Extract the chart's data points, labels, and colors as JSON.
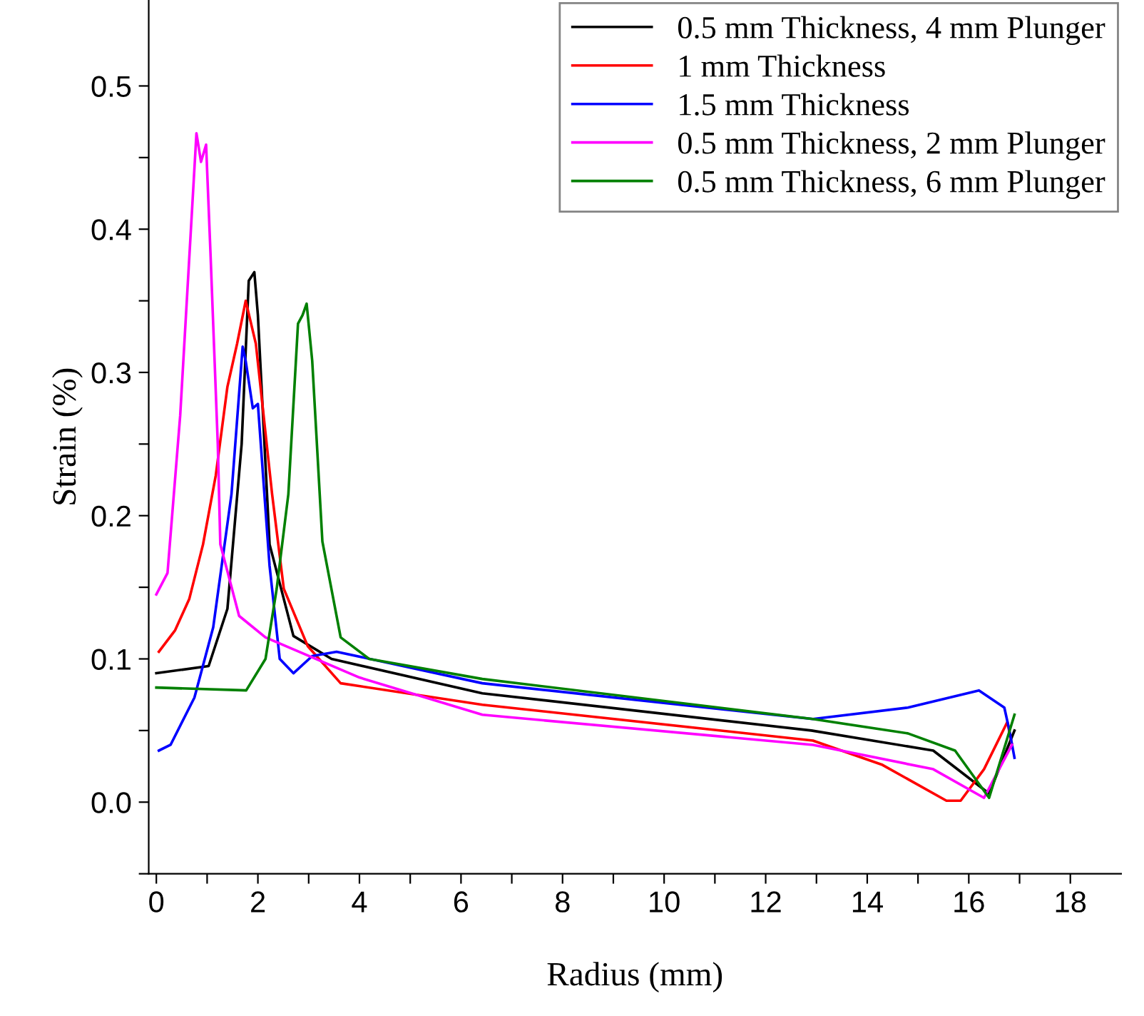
{
  "chart_data": {
    "type": "line",
    "xlabel": "Radius (mm)",
    "ylabel": "Strain (%)",
    "xlim": [
      -0.15,
      19
    ],
    "ylim": [
      -0.05,
      0.56
    ],
    "xticks": [
      0,
      {
        "value": 1,
        "label": null
      },
      2,
      {
        "value": 3,
        "label": null
      },
      4,
      {
        "value": 5,
        "label": null
      },
      6,
      {
        "value": 7,
        "label": null
      },
      8,
      {
        "value": 9,
        "label": null
      },
      10,
      {
        "value": 11,
        "label": null
      },
      12,
      {
        "value": 13,
        "label": null
      },
      14,
      {
        "value": 15,
        "label": null
      },
      16,
      {
        "value": 17,
        "label": null
      },
      18
    ],
    "yticks": [
      {
        "value": -0.05,
        "label": null
      },
      {
        "value": 0,
        "label": "0.0"
      },
      {
        "value": 0.05,
        "label": null
      },
      0.1,
      {
        "value": 0.15,
        "label": null
      },
      0.2,
      {
        "value": 0.25,
        "label": null
      },
      0.3,
      {
        "value": 0.35,
        "label": null
      },
      0.4,
      {
        "value": 0.45,
        "label": null
      },
      0.5
    ],
    "grid": false,
    "legend": "top right",
    "marker": "none",
    "line_style": "solid",
    "series": [
      {
        "name": "0.5 mm Thickness, 4 mm Plunger",
        "color": "#000000",
        "x": [
          0,
          1.03,
          1.4,
          1.68,
          1.82,
          1.93,
          2.0,
          2.23,
          2.7,
          3.45,
          6.42,
          12.9,
          15.3,
          16.4,
          16.9
        ],
        "values": [
          0.09,
          0.095,
          0.135,
          0.25,
          0.364,
          0.37,
          0.34,
          0.18,
          0.116,
          0.1,
          0.076,
          0.05,
          0.036,
          0.006,
          0.05
        ]
      },
      {
        "name": "1 mm Thickness",
        "color": "#ff0000",
        "x": [
          0.05,
          0.37,
          0.65,
          0.92,
          1.17,
          1.4,
          1.59,
          1.76,
          1.96,
          2.28,
          2.51,
          2.98,
          3.63,
          6.42,
          12.93,
          14.3,
          15.56,
          15.84,
          16.3,
          16.76,
          16.85
        ],
        "values": [
          0.105,
          0.12,
          0.142,
          0.18,
          0.228,
          0.29,
          0.32,
          0.35,
          0.32,
          0.215,
          0.149,
          0.109,
          0.083,
          0.068,
          0.043,
          0.026,
          0.001,
          0.001,
          0.023,
          0.056,
          0.04
        ]
      },
      {
        "name": "1.5 mm Thickness",
        "color": "#0000ff",
        "x": [
          0.05,
          0.28,
          0.75,
          1.12,
          1.48,
          1.7,
          1.76,
          1.9,
          2.0,
          2.23,
          2.43,
          2.7,
          3.07,
          3.55,
          6.42,
          12.93,
          14.8,
          16.2,
          16.7,
          16.8,
          16.9
        ],
        "values": [
          0.036,
          0.04,
          0.073,
          0.122,
          0.215,
          0.318,
          0.308,
          0.275,
          0.278,
          0.165,
          0.1,
          0.09,
          0.102,
          0.105,
          0.083,
          0.058,
          0.066,
          0.078,
          0.066,
          0.05,
          0.031
        ]
      },
      {
        "name": "0.5 mm Thickness, 2 mm Plunger",
        "color": "#ff00ff",
        "x": [
          0,
          0.22,
          0.47,
          0.79,
          0.88,
          0.98,
          1.07,
          1.21,
          1.26,
          1.63,
          2.15,
          4.0,
          6.42,
          12.93,
          15.3,
          16.3,
          16.85
        ],
        "values": [
          0.145,
          0.16,
          0.27,
          0.467,
          0.447,
          0.459,
          0.38,
          0.25,
          0.18,
          0.13,
          0.115,
          0.087,
          0.061,
          0.04,
          0.023,
          0.003,
          0.04
        ]
      },
      {
        "name": "0.5 mm Thickness, 6 mm Plunger",
        "color": "#008000",
        "x": [
          0,
          1.77,
          2.15,
          2.37,
          2.6,
          2.79,
          2.88,
          2.96,
          3.07,
          3.27,
          3.63,
          4.19,
          6.42,
          12.93,
          14.8,
          15.73,
          16.4,
          16.9
        ],
        "values": [
          0.08,
          0.078,
          0.1,
          0.149,
          0.215,
          0.334,
          0.34,
          0.348,
          0.308,
          0.182,
          0.115,
          0.1,
          0.086,
          0.058,
          0.048,
          0.036,
          0.003,
          0.061
        ]
      }
    ]
  }
}
